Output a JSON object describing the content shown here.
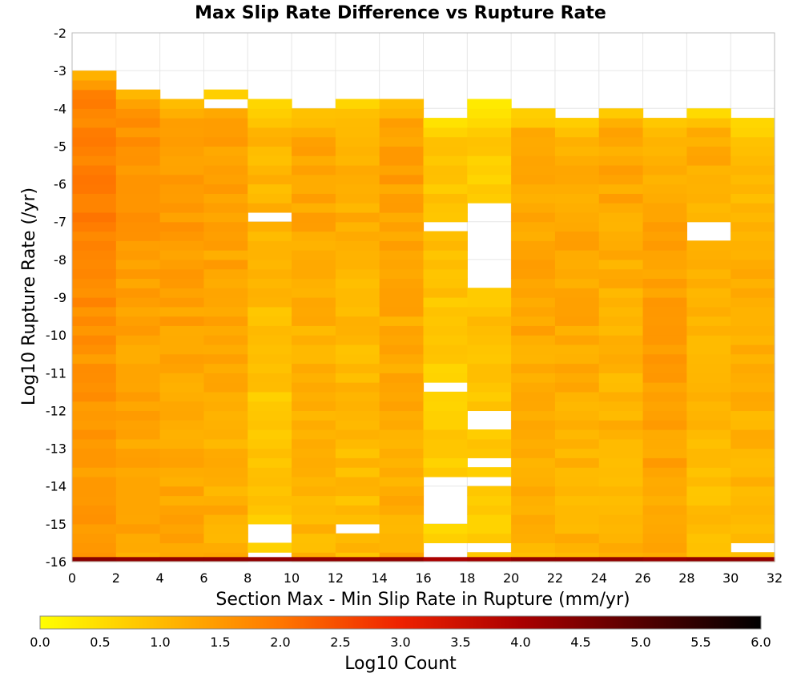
{
  "chart_data": {
    "type": "heatmap",
    "title": "Max Slip Rate Difference vs Rupture Rate",
    "xlabel": "Section Max - Min Slip Rate in Rupture (mm/yr)",
    "ylabel": "Log10 Rupture Rate (/yr)",
    "xlim": [
      0,
      32
    ],
    "ylim": [
      -16,
      -2
    ],
    "x_ticks": [
      "0",
      "2",
      "4",
      "6",
      "8",
      "10",
      "12",
      "14",
      "16",
      "18",
      "20",
      "22",
      "24",
      "26",
      "28",
      "30",
      "32"
    ],
    "y_ticks": [
      "-2",
      "-3",
      "-4",
      "-5",
      "-6",
      "-7",
      "-8",
      "-9",
      "-10",
      "-11",
      "-12",
      "-13",
      "-14",
      "-15",
      "-16"
    ],
    "x_bin_width": 2,
    "y_bin_height": 0.25,
    "grid": true,
    "colorbar": {
      "label": "Log10 Count",
      "range": [
        0.0,
        6.0
      ],
      "ticks": [
        "0.0",
        "0.5",
        "1.0",
        "1.5",
        "2.0",
        "2.5",
        "3.0",
        "3.5",
        "4.0",
        "4.5",
        "5.0",
        "5.5",
        "6.0"
      ],
      "stops": [
        "#ffff00",
        "#ffbb00",
        "#ff7700",
        "#ee2200",
        "#aa0000",
        "#550000",
        "#000000"
      ],
      "placement": "bottom"
    },
    "columns": [
      {
        "x0": 0,
        "top": -3.0,
        "gaps": [],
        "base": 1.5,
        "peak": 1.9,
        "peak_at": -6.2
      },
      {
        "x0": 2,
        "top": -3.5,
        "gaps": [],
        "base": 1.3,
        "peak": 1.6,
        "peak_at": -5.8
      },
      {
        "x0": 4,
        "top": -3.75,
        "gaps": [],
        "base": 1.3,
        "peak": 1.5,
        "peak_at": -6.0
      },
      {
        "x0": 6,
        "top": -3.5,
        "gaps": [
          [
            -4.0,
            -3.75
          ]
        ],
        "base": 1.2,
        "peak": 1.4,
        "peak_at": -6.0
      },
      {
        "x0": 8,
        "top": -3.75,
        "gaps": [
          [
            -7.0,
            -6.75
          ],
          [
            -15.5,
            -15.0
          ],
          [
            -16.0,
            -15.75
          ]
        ],
        "base": 0.8,
        "peak": 1.1,
        "peak_at": -6.5
      },
      {
        "x0": 10,
        "top": -4.0,
        "gaps": [],
        "base": 1.1,
        "peak": 1.3,
        "peak_at": -6.0
      },
      {
        "x0": 12,
        "top": -3.75,
        "gaps": [
          [
            -15.25,
            -15.0
          ]
        ],
        "base": 1.0,
        "peak": 1.2,
        "peak_at": -6.0
      },
      {
        "x0": 14,
        "top": -3.75,
        "gaps": [],
        "base": 1.2,
        "peak": 1.4,
        "peak_at": -6.0
      },
      {
        "x0": 16,
        "top": -4.25,
        "gaps": [
          [
            -7.25,
            -7.0
          ],
          [
            -11.5,
            -11.25
          ],
          [
            -15.0,
            -13.75
          ],
          [
            -16.0,
            -15.5
          ]
        ],
        "base": 0.7,
        "peak": 0.9,
        "peak_at": -8.0
      },
      {
        "x0": 18,
        "top": -3.75,
        "gaps": [
          [
            -8.75,
            -6.5
          ],
          [
            -12.5,
            -12.0
          ],
          [
            -13.5,
            -13.25
          ],
          [
            -14.0,
            -13.75
          ],
          [
            -15.75,
            -15.5
          ]
        ],
        "base": 0.7,
        "peak": 0.9,
        "peak_at": -10.0
      },
      {
        "x0": 20,
        "top": -4.0,
        "gaps": [],
        "base": 1.1,
        "peak": 1.3,
        "peak_at": -9.0
      },
      {
        "x0": 22,
        "top": -4.25,
        "gaps": [],
        "base": 1.1,
        "peak": 1.3,
        "peak_at": -9.0
      },
      {
        "x0": 24,
        "top": -4.0,
        "gaps": [],
        "base": 1.1,
        "peak": 1.3,
        "peak_at": -6.0
      },
      {
        "x0": 26,
        "top": -4.25,
        "gaps": [],
        "base": 1.2,
        "peak": 1.5,
        "peak_at": -10.5
      },
      {
        "x0": 28,
        "top": -4.0,
        "gaps": [
          [
            -7.5,
            -7.0
          ]
        ],
        "base": 1.0,
        "peak": 1.2,
        "peak_at": -6.0
      },
      {
        "x0": 30,
        "top": -4.25,
        "gaps": [
          [
            -15.75,
            -15.5
          ]
        ],
        "base": 1.0,
        "peak": 1.2,
        "peak_at": -10.0
      }
    ],
    "bottom_row": {
      "y0": -16.0,
      "height": 0.12,
      "values": [
        4.4,
        4.3,
        4.3,
        4.3,
        4.3,
        4.3,
        4.3,
        4.3,
        4.0,
        4.1,
        4.3,
        4.3,
        4.3,
        4.2,
        4.3,
        4.3
      ]
    }
  }
}
